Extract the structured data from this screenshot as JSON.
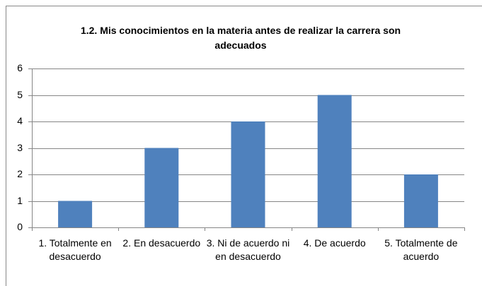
{
  "chart_data": {
    "type": "bar",
    "title": "1.2. Mis conocimientos en la materia antes de realizar la carrera son adecuados",
    "categories": [
      "1. Totalmente en desacuerdo",
      "2. En desacuerdo",
      "3. Ni de acuerdo ni en desacuerdo",
      "4. De acuerdo",
      "5. Totalmente de acuerdo"
    ],
    "values": [
      1,
      3,
      4,
      5,
      2
    ],
    "color": "#4f81bd",
    "ylim": [
      0,
      6
    ],
    "yticks": [
      0,
      1,
      2,
      3,
      4,
      5,
      6
    ],
    "grid": true
  }
}
